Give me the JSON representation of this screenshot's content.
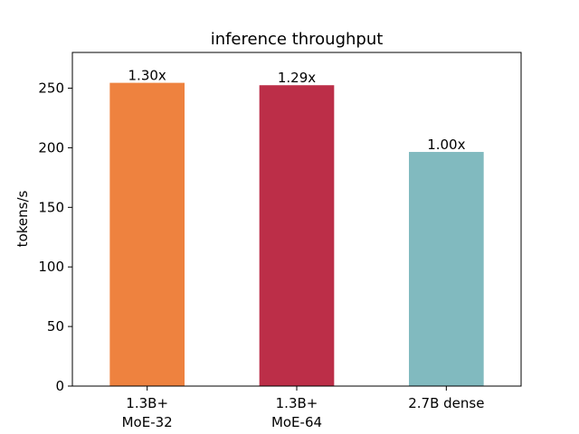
{
  "chart_data": {
    "type": "bar",
    "title": "inference throughput",
    "xlabel": "",
    "ylabel": "tokens/s",
    "ylim": [
      0,
      280
    ],
    "yticks": [
      0,
      50,
      100,
      150,
      200,
      250
    ],
    "grid": false,
    "categories": [
      [
        "1.3B+",
        "MoE-32"
      ],
      [
        "1.3B+",
        "MoE-64"
      ],
      [
        "2.7B dense"
      ]
    ],
    "values": [
      254.5,
      252.5,
      196.5
    ],
    "bar_labels": [
      "1.30x",
      "1.29x",
      "1.00x"
    ],
    "colors": [
      "#ee823f",
      "#bc2e48",
      "#81babf"
    ]
  }
}
